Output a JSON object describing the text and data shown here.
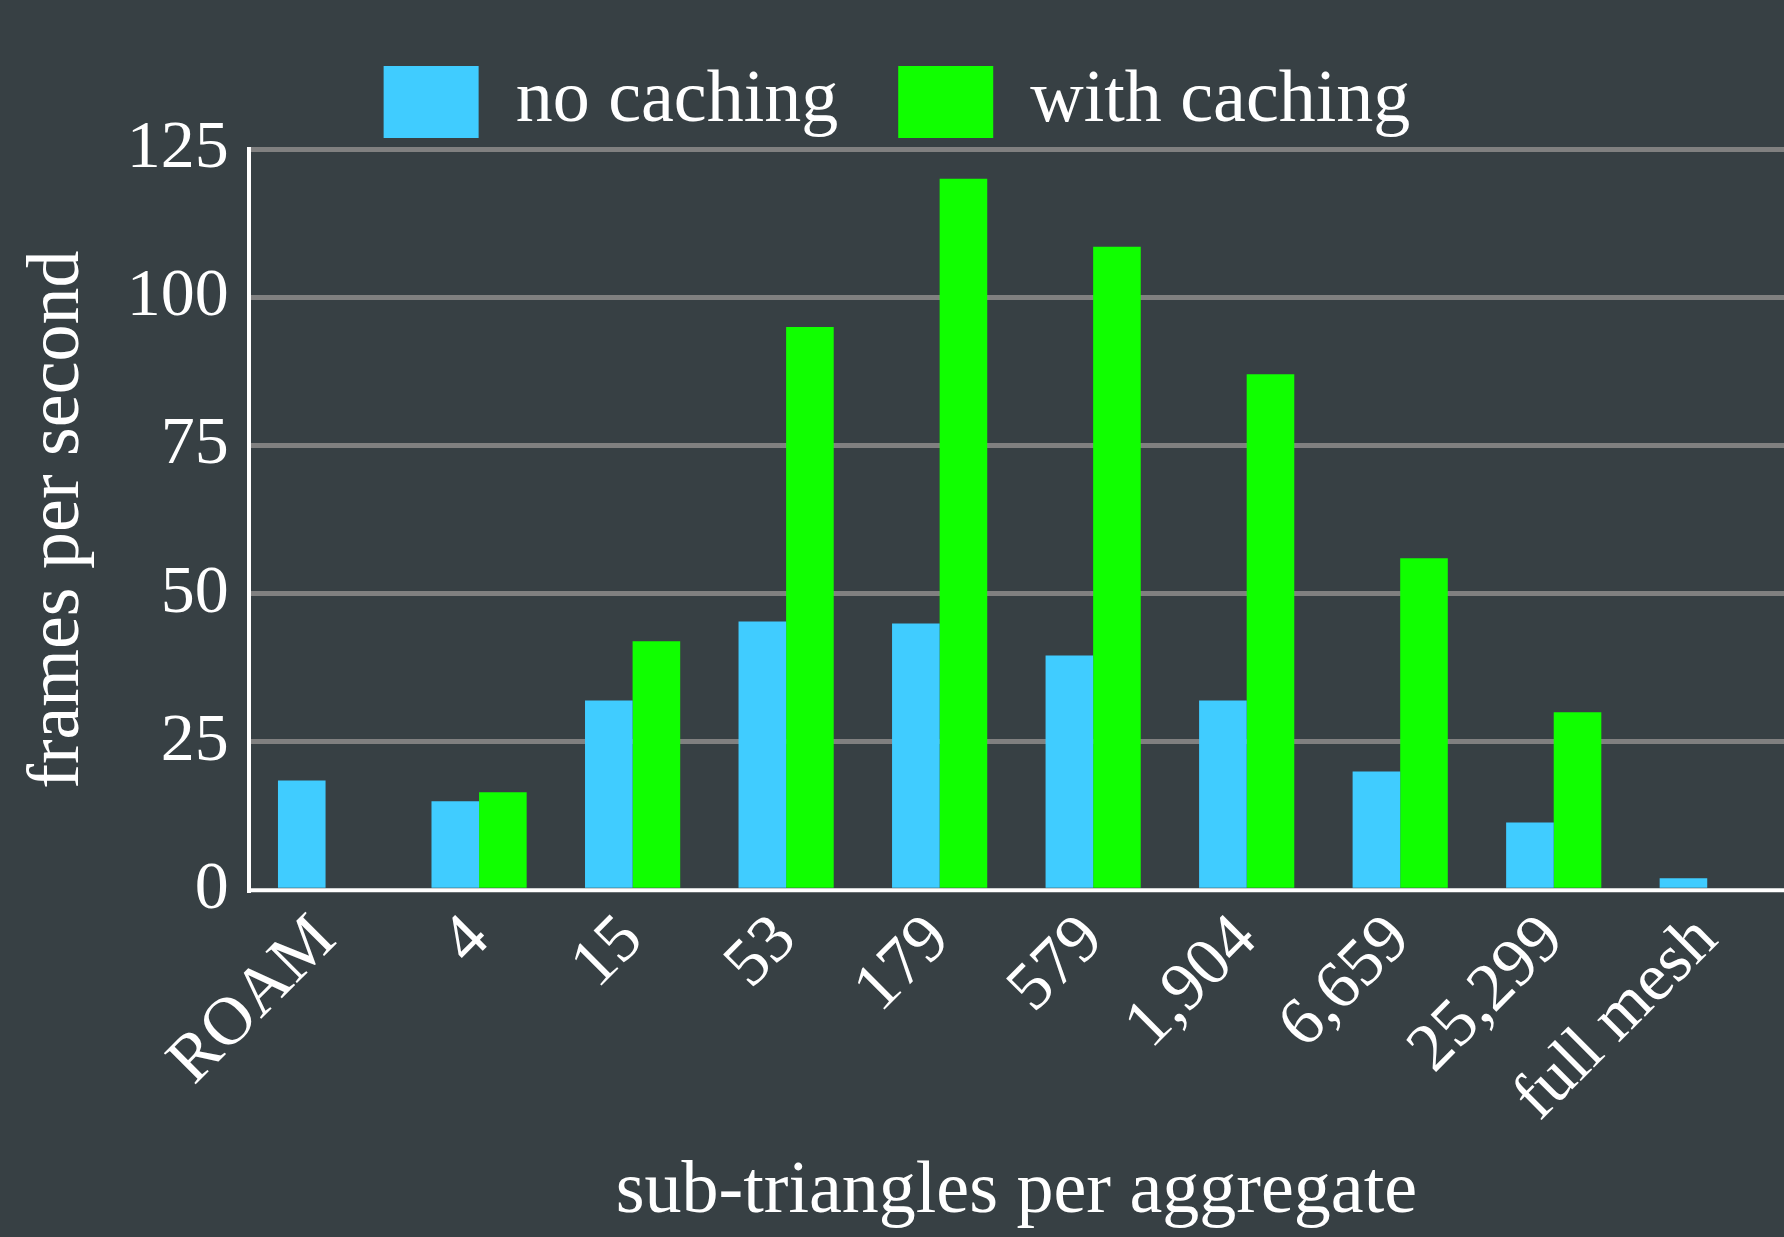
{
  "chart_data": {
    "type": "bar",
    "xlabel": "sub-triangles per aggregate",
    "ylabel": "frames per second",
    "categories": [
      "ROAM",
      "4",
      "15",
      "53",
      "179",
      "579",
      "1,904",
      "6,659",
      "25,299",
      "full mesh"
    ],
    "series": [
      {
        "name": "no caching",
        "color": "#40ccff",
        "values": [
          18.5,
          15,
          32,
          45.3,
          45,
          39.6,
          32,
          20,
          11.4,
          2
        ]
      },
      {
        "name": "with caching",
        "color": "#10ff00",
        "values": [
          null,
          16.5,
          42,
          95,
          120,
          108.5,
          87,
          56,
          30,
          null
        ]
      }
    ],
    "ylim": [
      0,
      125
    ],
    "yticks": [
      0,
      25,
      50,
      75,
      100,
      125
    ],
    "grid": "y",
    "legend": "top"
  }
}
